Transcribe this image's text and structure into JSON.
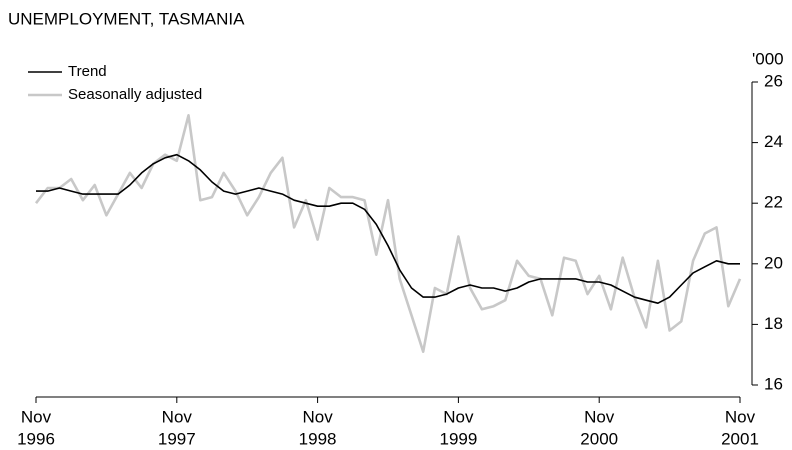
{
  "chart_data": {
    "type": "line",
    "title": "UNEMPLOYMENT, TASMANIA",
    "y_unit": "'000",
    "x": [
      "1996-11",
      "1996-12",
      "1997-01",
      "1997-02",
      "1997-03",
      "1997-04",
      "1997-05",
      "1997-06",
      "1997-07",
      "1997-08",
      "1997-09",
      "1997-10",
      "1997-11",
      "1997-12",
      "1998-01",
      "1998-02",
      "1998-03",
      "1998-04",
      "1998-05",
      "1998-06",
      "1998-07",
      "1998-08",
      "1998-09",
      "1998-10",
      "1998-11",
      "1998-12",
      "1999-01",
      "1999-02",
      "1999-03",
      "1999-04",
      "1999-05",
      "1999-06",
      "1999-07",
      "1999-08",
      "1999-09",
      "1999-10",
      "1999-11",
      "1999-12",
      "2000-01",
      "2000-02",
      "2000-03",
      "2000-04",
      "2000-05",
      "2000-06",
      "2000-07",
      "2000-08",
      "2000-09",
      "2000-10",
      "2000-11",
      "2000-12",
      "2001-01",
      "2001-02",
      "2001-03",
      "2001-04",
      "2001-05",
      "2001-06",
      "2001-07",
      "2001-08",
      "2001-09",
      "2001-10",
      "2001-11"
    ],
    "series": [
      {
        "name": "Trend",
        "color": "#000000",
        "values": [
          22.4,
          22.4,
          22.5,
          22.4,
          22.3,
          22.3,
          22.3,
          22.3,
          22.6,
          23.0,
          23.3,
          23.5,
          23.6,
          23.4,
          23.1,
          22.7,
          22.4,
          22.3,
          22.4,
          22.5,
          22.4,
          22.3,
          22.1,
          22.0,
          21.9,
          21.9,
          22.0,
          22.0,
          21.8,
          21.3,
          20.6,
          19.8,
          19.2,
          18.9,
          18.9,
          19.0,
          19.2,
          19.3,
          19.2,
          19.2,
          19.1,
          19.2,
          19.4,
          19.5,
          19.5,
          19.5,
          19.5,
          19.4,
          19.4,
          19.3,
          19.1,
          18.9,
          18.8,
          18.7,
          18.9,
          19.3,
          19.7,
          19.9,
          20.1,
          20.0,
          20.0
        ]
      },
      {
        "name": "Seasonally adjusted",
        "color": "#c8c8c8",
        "values": [
          22.0,
          22.5,
          22.5,
          22.8,
          22.1,
          22.6,
          21.6,
          22.3,
          23.0,
          22.5,
          23.3,
          23.6,
          23.4,
          24.9,
          22.1,
          22.2,
          23.0,
          22.4,
          21.6,
          22.2,
          23.0,
          23.5,
          21.2,
          22.1,
          20.8,
          22.5,
          22.2,
          22.2,
          22.1,
          20.3,
          22.1,
          19.5,
          18.3,
          17.1,
          19.2,
          19.0,
          20.9,
          19.2,
          18.5,
          18.6,
          18.8,
          20.1,
          19.6,
          19.5,
          18.3,
          20.2,
          20.1,
          19.0,
          19.6,
          18.5,
          20.2,
          18.9,
          17.9,
          20.1,
          17.8,
          18.1,
          20.1,
          21.0,
          21.2,
          18.6,
          19.5
        ]
      }
    ],
    "xticks": [
      {
        "value": "1996-11",
        "label": [
          "Nov",
          "1996"
        ]
      },
      {
        "value": "1997-11",
        "label": [
          "Nov",
          "1997"
        ]
      },
      {
        "value": "1998-11",
        "label": [
          "Nov",
          "1998"
        ]
      },
      {
        "value": "1999-11",
        "label": [
          "Nov",
          "1999"
        ]
      },
      {
        "value": "2000-11",
        "label": [
          "Nov",
          "2000"
        ]
      },
      {
        "value": "2001-11",
        "label": [
          "Nov",
          "2001"
        ]
      }
    ],
    "ylim": [
      16,
      26
    ],
    "yticks": [
      16,
      18,
      20,
      22,
      24,
      26
    ],
    "y_axis_side": "right",
    "grid": false,
    "legend": "top-left"
  }
}
